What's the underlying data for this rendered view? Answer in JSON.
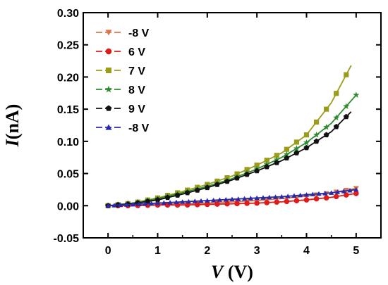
{
  "chart_data": {
    "type": "line",
    "xlabel_italic": "V",
    "xlabel_unit": " (V)",
    "ylabel_italic": "I",
    "ylabel_unit": "(nA)",
    "xlim": [
      -0.5,
      5.5
    ],
    "ylim": [
      -0.05,
      0.3
    ],
    "xticks": [
      0,
      1,
      2,
      3,
      4,
      5
    ],
    "yticks": [
      -0.05,
      0.0,
      0.05,
      0.1,
      0.15,
      0.2,
      0.25,
      0.3
    ],
    "ytick_labels": [
      "-0.05",
      "0.00",
      "0.05",
      "0.10",
      "0.15",
      "0.20",
      "0.25",
      "0.30"
    ],
    "grid": false,
    "legend_position": "top-left",
    "series": [
      {
        "name": "-8 V",
        "color": "#d9774a",
        "marker": "triangle-down",
        "x": [
          0,
          0.5,
          1,
          1.5,
          2,
          2.5,
          3,
          3.5,
          4,
          4.5,
          5
        ],
        "y": [
          0.0,
          0.001,
          0.002,
          0.003,
          0.004,
          0.006,
          0.008,
          0.011,
          0.015,
          0.02,
          0.027
        ]
      },
      {
        "name": "6 V",
        "color": "#e01b1b",
        "marker": "circle",
        "x": [
          0,
          0.5,
          1,
          1.5,
          2,
          2.5,
          3,
          3.5,
          4,
          4.5,
          5
        ],
        "y": [
          0.0,
          0.0,
          0.001,
          0.001,
          0.002,
          0.003,
          0.004,
          0.006,
          0.009,
          0.013,
          0.019
        ]
      },
      {
        "name": "7 V",
        "color": "#9c9c1c",
        "marker": "square",
        "x": [
          0,
          0.5,
          1,
          1.5,
          2,
          2.5,
          3,
          3.5,
          4,
          4.5,
          4.9
        ],
        "y": [
          0.0,
          0.004,
          0.012,
          0.022,
          0.033,
          0.046,
          0.063,
          0.082,
          0.11,
          0.16,
          0.218
        ]
      },
      {
        "name": "8 V",
        "color": "#2e8b2e",
        "marker": "star",
        "x": [
          0,
          0.5,
          1,
          1.5,
          2,
          2.5,
          3,
          3.5,
          4,
          4.5,
          5
        ],
        "y": [
          0.0,
          0.004,
          0.011,
          0.02,
          0.03,
          0.042,
          0.057,
          0.075,
          0.098,
          0.128,
          0.172
        ]
      },
      {
        "name": "9 V",
        "color": "#111111",
        "marker": "pentagon",
        "x": [
          0,
          0.5,
          1,
          1.5,
          2,
          2.5,
          3,
          3.5,
          4,
          4.5,
          4.9
        ],
        "y": [
          0.0,
          0.003,
          0.009,
          0.018,
          0.028,
          0.04,
          0.054,
          0.07,
          0.09,
          0.115,
          0.146
        ]
      },
      {
        "name": "-8 V",
        "color": "#2a2aa8",
        "marker": "triangle-up",
        "x": [
          0,
          0.5,
          1,
          1.5,
          2,
          2.5,
          3,
          3.5,
          4,
          4.5,
          5
        ],
        "y": [
          0.0,
          0.002,
          0.004,
          0.006,
          0.008,
          0.01,
          0.012,
          0.014,
          0.017,
          0.02,
          0.025
        ]
      }
    ]
  }
}
